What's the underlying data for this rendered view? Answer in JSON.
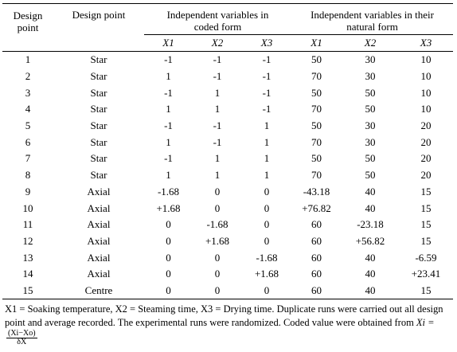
{
  "header": {
    "col_design_point": "Design point",
    "col_design_type": "Design point",
    "group_coded": "Independent variables in coded form",
    "group_natural": "Independent variables in their natural form",
    "sub_labels": [
      "X1",
      "X2",
      "X3",
      "X1",
      "X2",
      "X3"
    ]
  },
  "rows": [
    {
      "dp": "1",
      "type": "Star",
      "c1": "-1",
      "c2": "-1",
      "c3": "-1",
      "n1": "50",
      "n2": "30",
      "n3": "10"
    },
    {
      "dp": "2",
      "type": "Star",
      "c1": "1",
      "c2": "-1",
      "c3": "-1",
      "n1": "70",
      "n2": "30",
      "n3": "10"
    },
    {
      "dp": "3",
      "type": "Star",
      "c1": "-1",
      "c2": "1",
      "c3": "-1",
      "n1": "50",
      "n2": "50",
      "n3": "10"
    },
    {
      "dp": "4",
      "type": "Star",
      "c1": "1",
      "c2": "1",
      "c3": "-1",
      "n1": "70",
      "n2": "50",
      "n3": "10"
    },
    {
      "dp": "5",
      "type": "Star",
      "c1": "-1",
      "c2": "-1",
      "c3": "1",
      "n1": "50",
      "n2": "30",
      "n3": "20"
    },
    {
      "dp": "6",
      "type": "Star",
      "c1": "1",
      "c2": "-1",
      "c3": "1",
      "n1": "70",
      "n2": "30",
      "n3": "20"
    },
    {
      "dp": "7",
      "type": "Star",
      "c1": "-1",
      "c2": "1",
      "c3": "1",
      "n1": "50",
      "n2": "50",
      "n3": "20"
    },
    {
      "dp": "8",
      "type": "Star",
      "c1": "1",
      "c2": "1",
      "c3": "1",
      "n1": "70",
      "n2": "50",
      "n3": "20"
    },
    {
      "dp": "9",
      "type": "Axial",
      "c1": "-1.68",
      "c2": "0",
      "c3": "0",
      "n1": "-43.18",
      "n2": "40",
      "n3": "15"
    },
    {
      "dp": "10",
      "type": "Axial",
      "c1": "+1.68",
      "c2": "0",
      "c3": "0",
      "n1": "+76.82",
      "n2": "40",
      "n3": "15"
    },
    {
      "dp": "11",
      "type": "Axial",
      "c1": "0",
      "c2": "-1.68",
      "c3": "0",
      "n1": "60",
      "n2": "-23.18",
      "n3": "15"
    },
    {
      "dp": "12",
      "type": "Axial",
      "c1": "0",
      "c2": "+1.68",
      "c3": "0",
      "n1": "60",
      "n2": "+56.82",
      "n3": "15"
    },
    {
      "dp": "13",
      "type": "Axial",
      "c1": "0",
      "c2": "0",
      "c3": "-1.68",
      "n1": "60",
      "n2": "40",
      "n3": "-6.59"
    },
    {
      "dp": "14",
      "type": "Axial",
      "c1": "0",
      "c2": "0",
      "c3": "+1.68",
      "n1": "60",
      "n2": "40",
      "n3": "+23.41"
    },
    {
      "dp": "15",
      "type": "Centre",
      "c1": "0",
      "c2": "0",
      "c3": "0",
      "n1": "60",
      "n2": "40",
      "n3": "15"
    }
  ],
  "footnote": {
    "text": "X1 = Soaking temperature, X2 = Steaming time, X3 = Drying time. Duplicate runs were carried out all design point and average recorded. The experimental runs were randomized. Coded value were obtained from",
    "formula_lhs": "Xi =",
    "formula_num": "(Xi−Xo)",
    "formula_den": "δX"
  }
}
